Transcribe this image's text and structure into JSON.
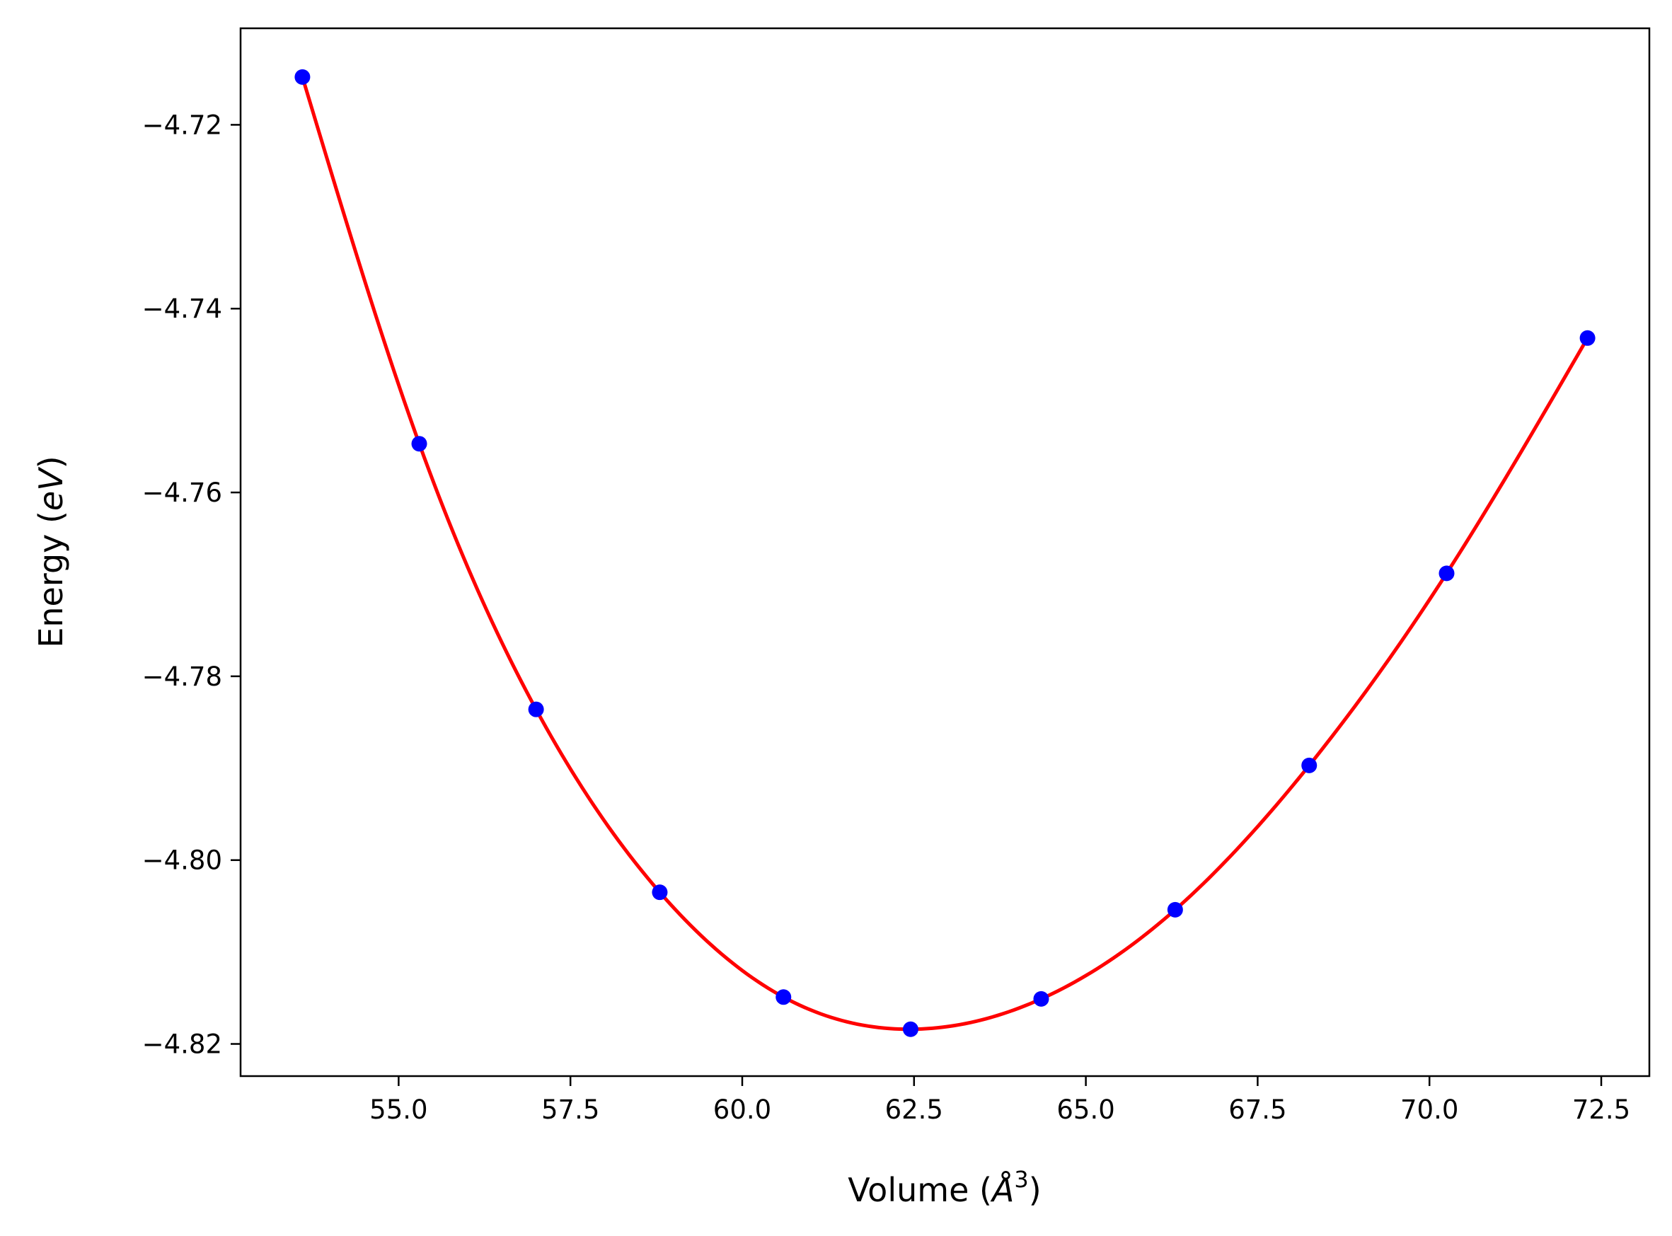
{
  "chart_data": {
    "type": "scatter",
    "xlabel_text": "Volume (",
    "xlabel_unit": "Å",
    "xlabel_sup": "3",
    "xlabel_close": ")",
    "ylabel_text": "Energy (",
    "ylabel_unit": "eV",
    "ylabel_close": ")",
    "xlim": [
      52.7,
      73.2
    ],
    "ylim": [
      -4.8235,
      -4.7095
    ],
    "xticks": [
      55.0,
      57.5,
      60.0,
      62.5,
      65.0,
      67.5,
      70.0,
      72.5
    ],
    "xtick_labels": [
      "55.0",
      "57.5",
      "60.0",
      "62.5",
      "65.0",
      "67.5",
      "70.0",
      "72.5"
    ],
    "yticks": [
      -4.72,
      -4.74,
      -4.76,
      -4.78,
      -4.8,
      -4.82
    ],
    "ytick_labels": [
      "−4.72",
      "−4.74",
      "−4.76",
      "−4.78",
      "−4.80",
      "−4.82"
    ],
    "grid": false,
    "legend": "none",
    "series": [
      {
        "kind": "points",
        "color": "#0000ff",
        "x": [
          53.6,
          55.3,
          57.0,
          58.8,
          60.6,
          62.45,
          64.35,
          66.3,
          68.25,
          70.25,
          72.3
        ],
        "y": [
          -4.7148,
          -4.7547,
          -4.7836,
          -4.8035,
          -4.8149,
          -4.8184,
          -4.8151,
          -4.8054,
          -4.7897,
          -4.7688,
          -4.7432
        ]
      },
      {
        "kind": "fit-curve",
        "color": "#ff0000"
      }
    ]
  }
}
